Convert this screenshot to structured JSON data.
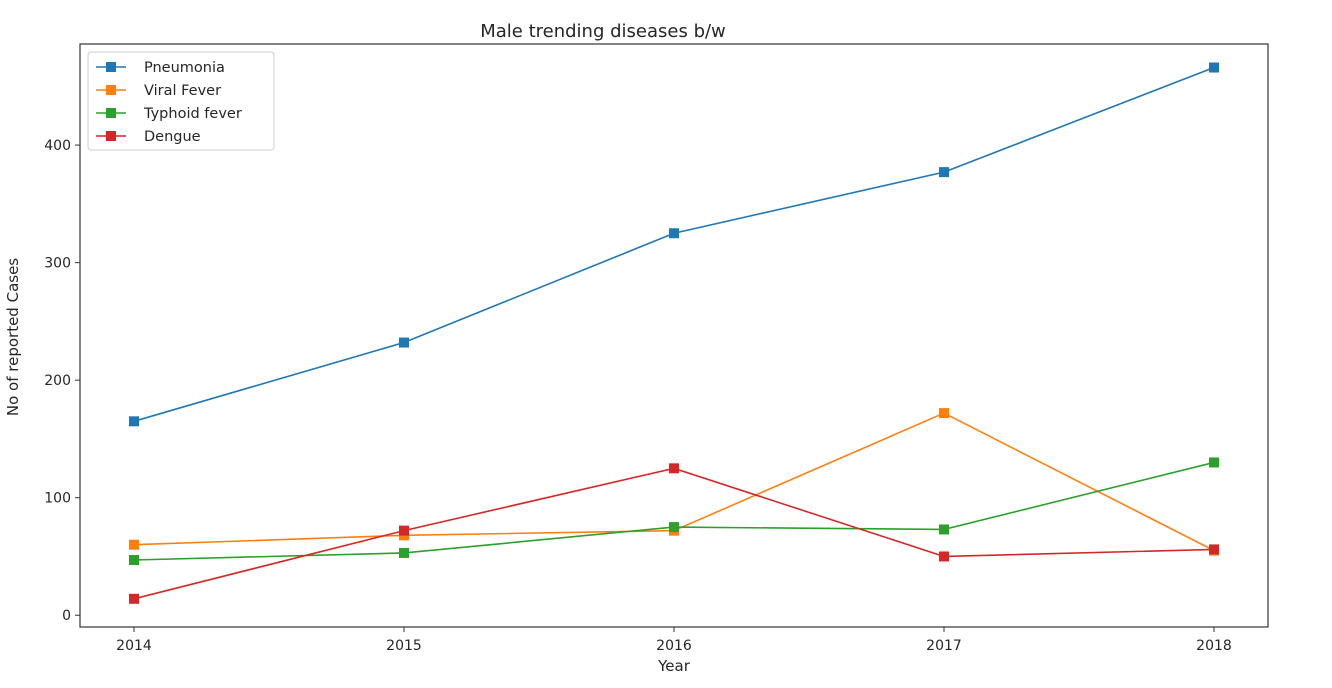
{
  "chart_data": {
    "type": "line",
    "title": "Male trending diseases b/w",
    "xlabel": "Year",
    "ylabel": "No of reported Cases",
    "categories": [
      "2014",
      "2015",
      "2016",
      "2017",
      "2018"
    ],
    "ylim": [
      -10,
      486
    ],
    "yticks": [
      0,
      100,
      200,
      300,
      400
    ],
    "grid": false,
    "legend_position": "top-left",
    "marker": "square",
    "series": [
      {
        "name": "Pneumonia",
        "color": "#1f77b4",
        "values": [
          165,
          232,
          325,
          377,
          466
        ]
      },
      {
        "name": "Viral Fever",
        "color": "#ff7f0e",
        "values": [
          60,
          68,
          72,
          172,
          55
        ]
      },
      {
        "name": "Typhoid fever",
        "color": "#2ca02c",
        "values": [
          47,
          53,
          75,
          73,
          130
        ]
      },
      {
        "name": "Dengue",
        "color": "#d62728",
        "values": [
          14,
          72,
          125,
          50,
          56
        ]
      }
    ]
  }
}
